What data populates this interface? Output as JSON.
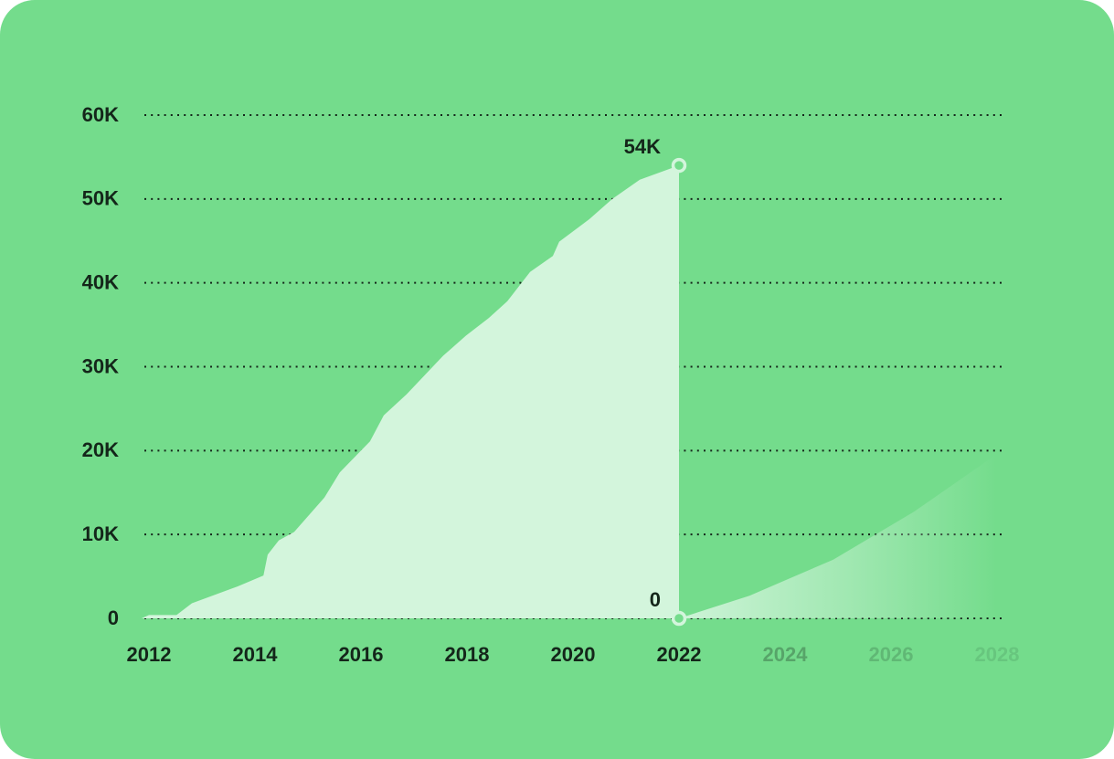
{
  "chart_data": {
    "type": "area",
    "xlim": [
      2011.8,
      2028.2
    ],
    "xticks": [
      2012,
      2014,
      2016,
      2018,
      2020,
      2022,
      2024,
      2026,
      2028
    ],
    "ylim": [
      0,
      60
    ],
    "yticks": [
      0,
      {
        "value": 10,
        "label": "10K"
      },
      {
        "value": 20,
        "label": "20K"
      },
      {
        "value": 30,
        "label": "30K"
      },
      {
        "value": 40,
        "label": "40K"
      },
      {
        "value": 50,
        "label": "50K"
      },
      {
        "value": 60,
        "label": "60K"
      }
    ],
    "grid": true,
    "series": [
      {
        "color": "#d3f5dc",
        "x": [
          2011.86,
          2012,
          2012.52,
          2012.81,
          2013.67,
          2014.16,
          2014.24,
          2014.45,
          2014.74,
          2015.31,
          2015.6,
          2016.17,
          2016.43,
          2016.86,
          2017.55,
          2017.98,
          2018.41,
          2018.76,
          2019.19,
          2019.62,
          2019.74,
          2020.31,
          2020.74,
          2021.26,
          2022
        ],
        "values": [
          0,
          0.4,
          0.4,
          1.8,
          3.8,
          5.1,
          7.6,
          9.3,
          10.3,
          14.4,
          17.4,
          21.1,
          24.2,
          26.7,
          31.3,
          33.7,
          35.8,
          37.8,
          41.3,
          43.2,
          44.9,
          47.6,
          50.0,
          52.3,
          54
        ],
        "value_labels": [
          null,
          null,
          null,
          null,
          null,
          null,
          null,
          null,
          null,
          null,
          null,
          null,
          null,
          null,
          null,
          null,
          null,
          null,
          null,
          null,
          null,
          null,
          null,
          null,
          "54K"
        ]
      },
      {
        "color": "#d3f5dc",
        "x": [
          2022,
          2023.33,
          2024.91,
          2026.43,
          2028
        ],
        "values": [
          0,
          2.7,
          7.0,
          12.7,
          19.6
        ],
        "value_labels": [
          "0",
          null,
          null,
          null,
          null
        ]
      }
    ]
  }
}
